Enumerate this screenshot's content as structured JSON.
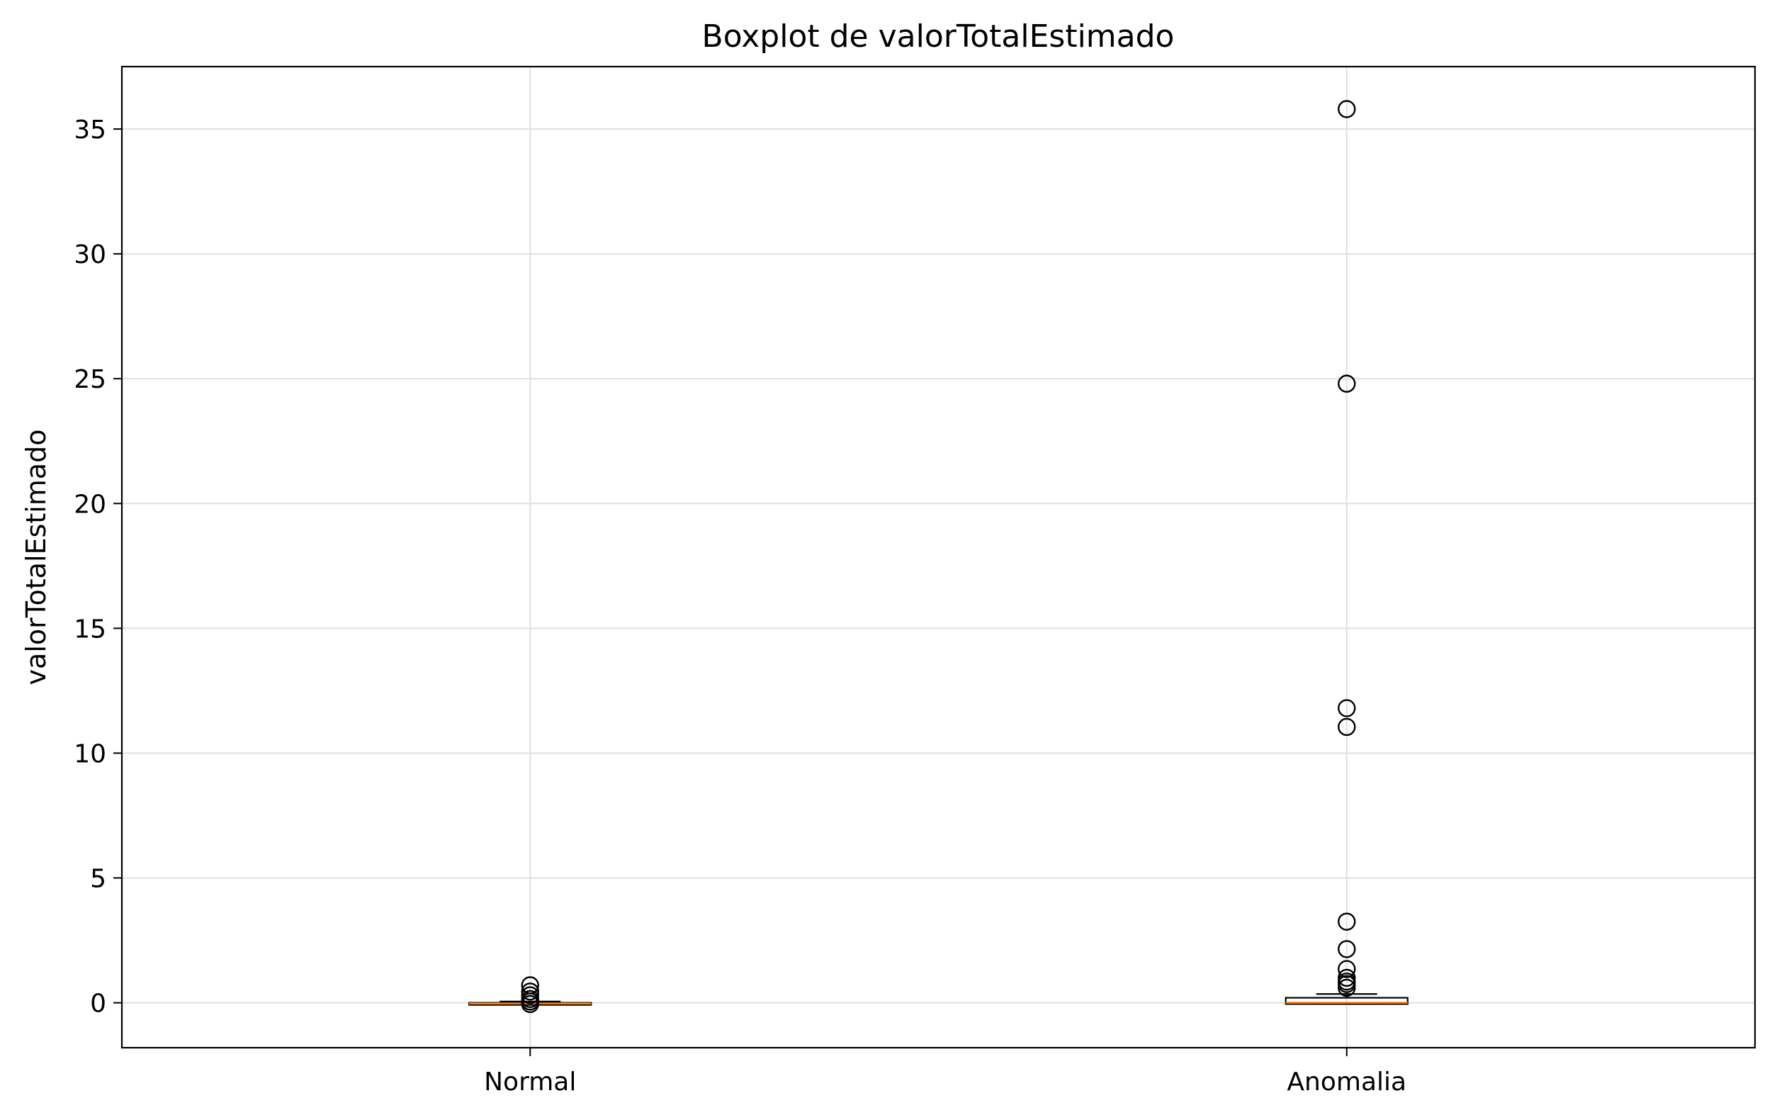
{
  "chart_data": {
    "type": "boxplot",
    "title": "Boxplot de valorTotalEstimado",
    "xlabel": "",
    "ylabel": "valorTotalEstimado",
    "categories": [
      "Normal",
      "Anomalia"
    ],
    "ylim": [
      -1.8,
      37.5
    ],
    "yticks": [
      0,
      5,
      10,
      15,
      20,
      25,
      30,
      35
    ],
    "grid": true,
    "boxes": [
      {
        "category": "Normal",
        "whisker_low": -0.05,
        "q1": -0.05,
        "median": -0.03,
        "q3": 0.0,
        "whisker_high": 0.05,
        "outliers": [
          0.7,
          0.45,
          0.3,
          0.15,
          0.05,
          -0.05
        ]
      },
      {
        "category": "Anomalia",
        "whisker_low": -0.05,
        "q1": -0.05,
        "median": 0.0,
        "q3": 0.2,
        "whisker_high": 0.35,
        "outliers": [
          35.8,
          24.8,
          11.8,
          11.05,
          3.25,
          2.15,
          1.35,
          1.0,
          0.85,
          0.75,
          0.6
        ]
      }
    ],
    "colors": {
      "box": "#000000",
      "median": "#ff7f0e",
      "grid": "#e0e0e0",
      "outlier": "#000000"
    }
  }
}
